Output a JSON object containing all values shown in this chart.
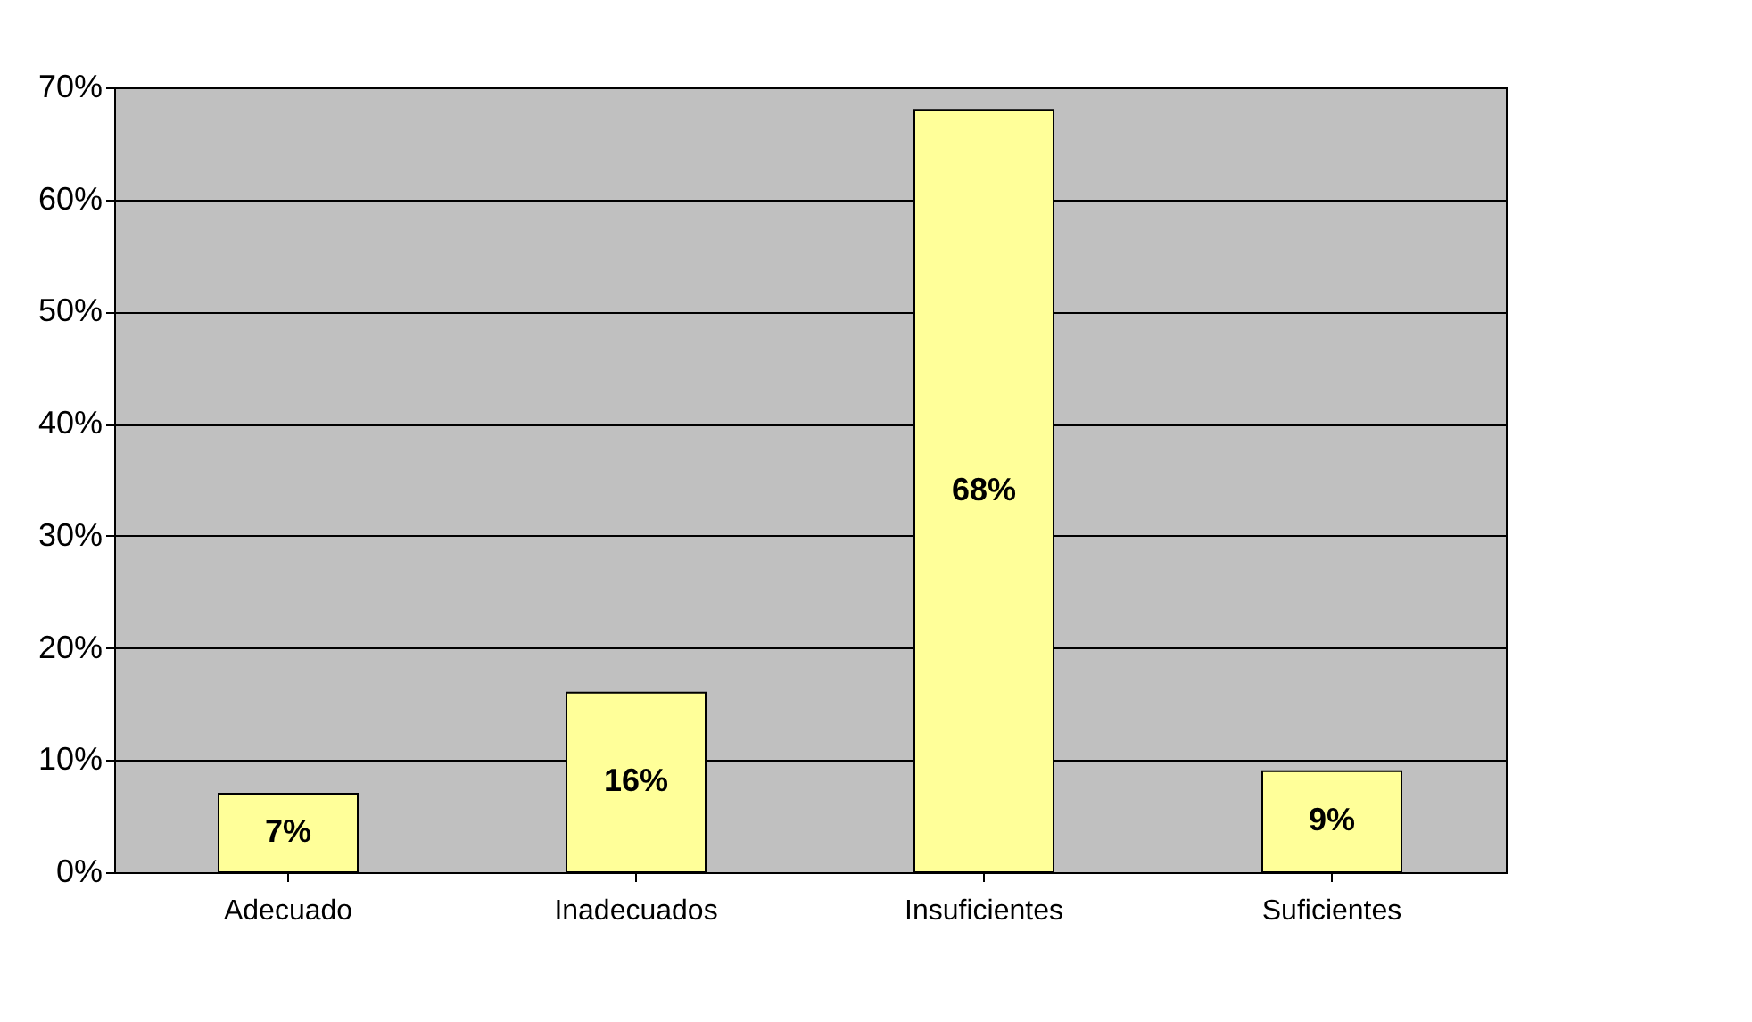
{
  "chart_data": {
    "type": "bar",
    "categories": [
      "Adecuado",
      "Inadecuados",
      "Insuficientes",
      "Suficientes"
    ],
    "values": [
      7,
      16,
      68,
      9
    ],
    "color": "#ffff99",
    "value_labels": [
      "7%",
      "16%",
      "68%",
      "9%"
    ],
    "ylim": [
      0,
      70
    ],
    "yticks": [
      {
        "value": 0,
        "label": "0%"
      },
      {
        "value": 10,
        "label": "10%"
      },
      {
        "value": 20,
        "label": "20%"
      },
      {
        "value": 30,
        "label": "30%"
      },
      {
        "value": 40,
        "label": "40%"
      },
      {
        "value": 50,
        "label": "50%"
      },
      {
        "value": 60,
        "label": "60%"
      },
      {
        "value": 70,
        "label": "70%"
      }
    ],
    "grid": "y"
  }
}
